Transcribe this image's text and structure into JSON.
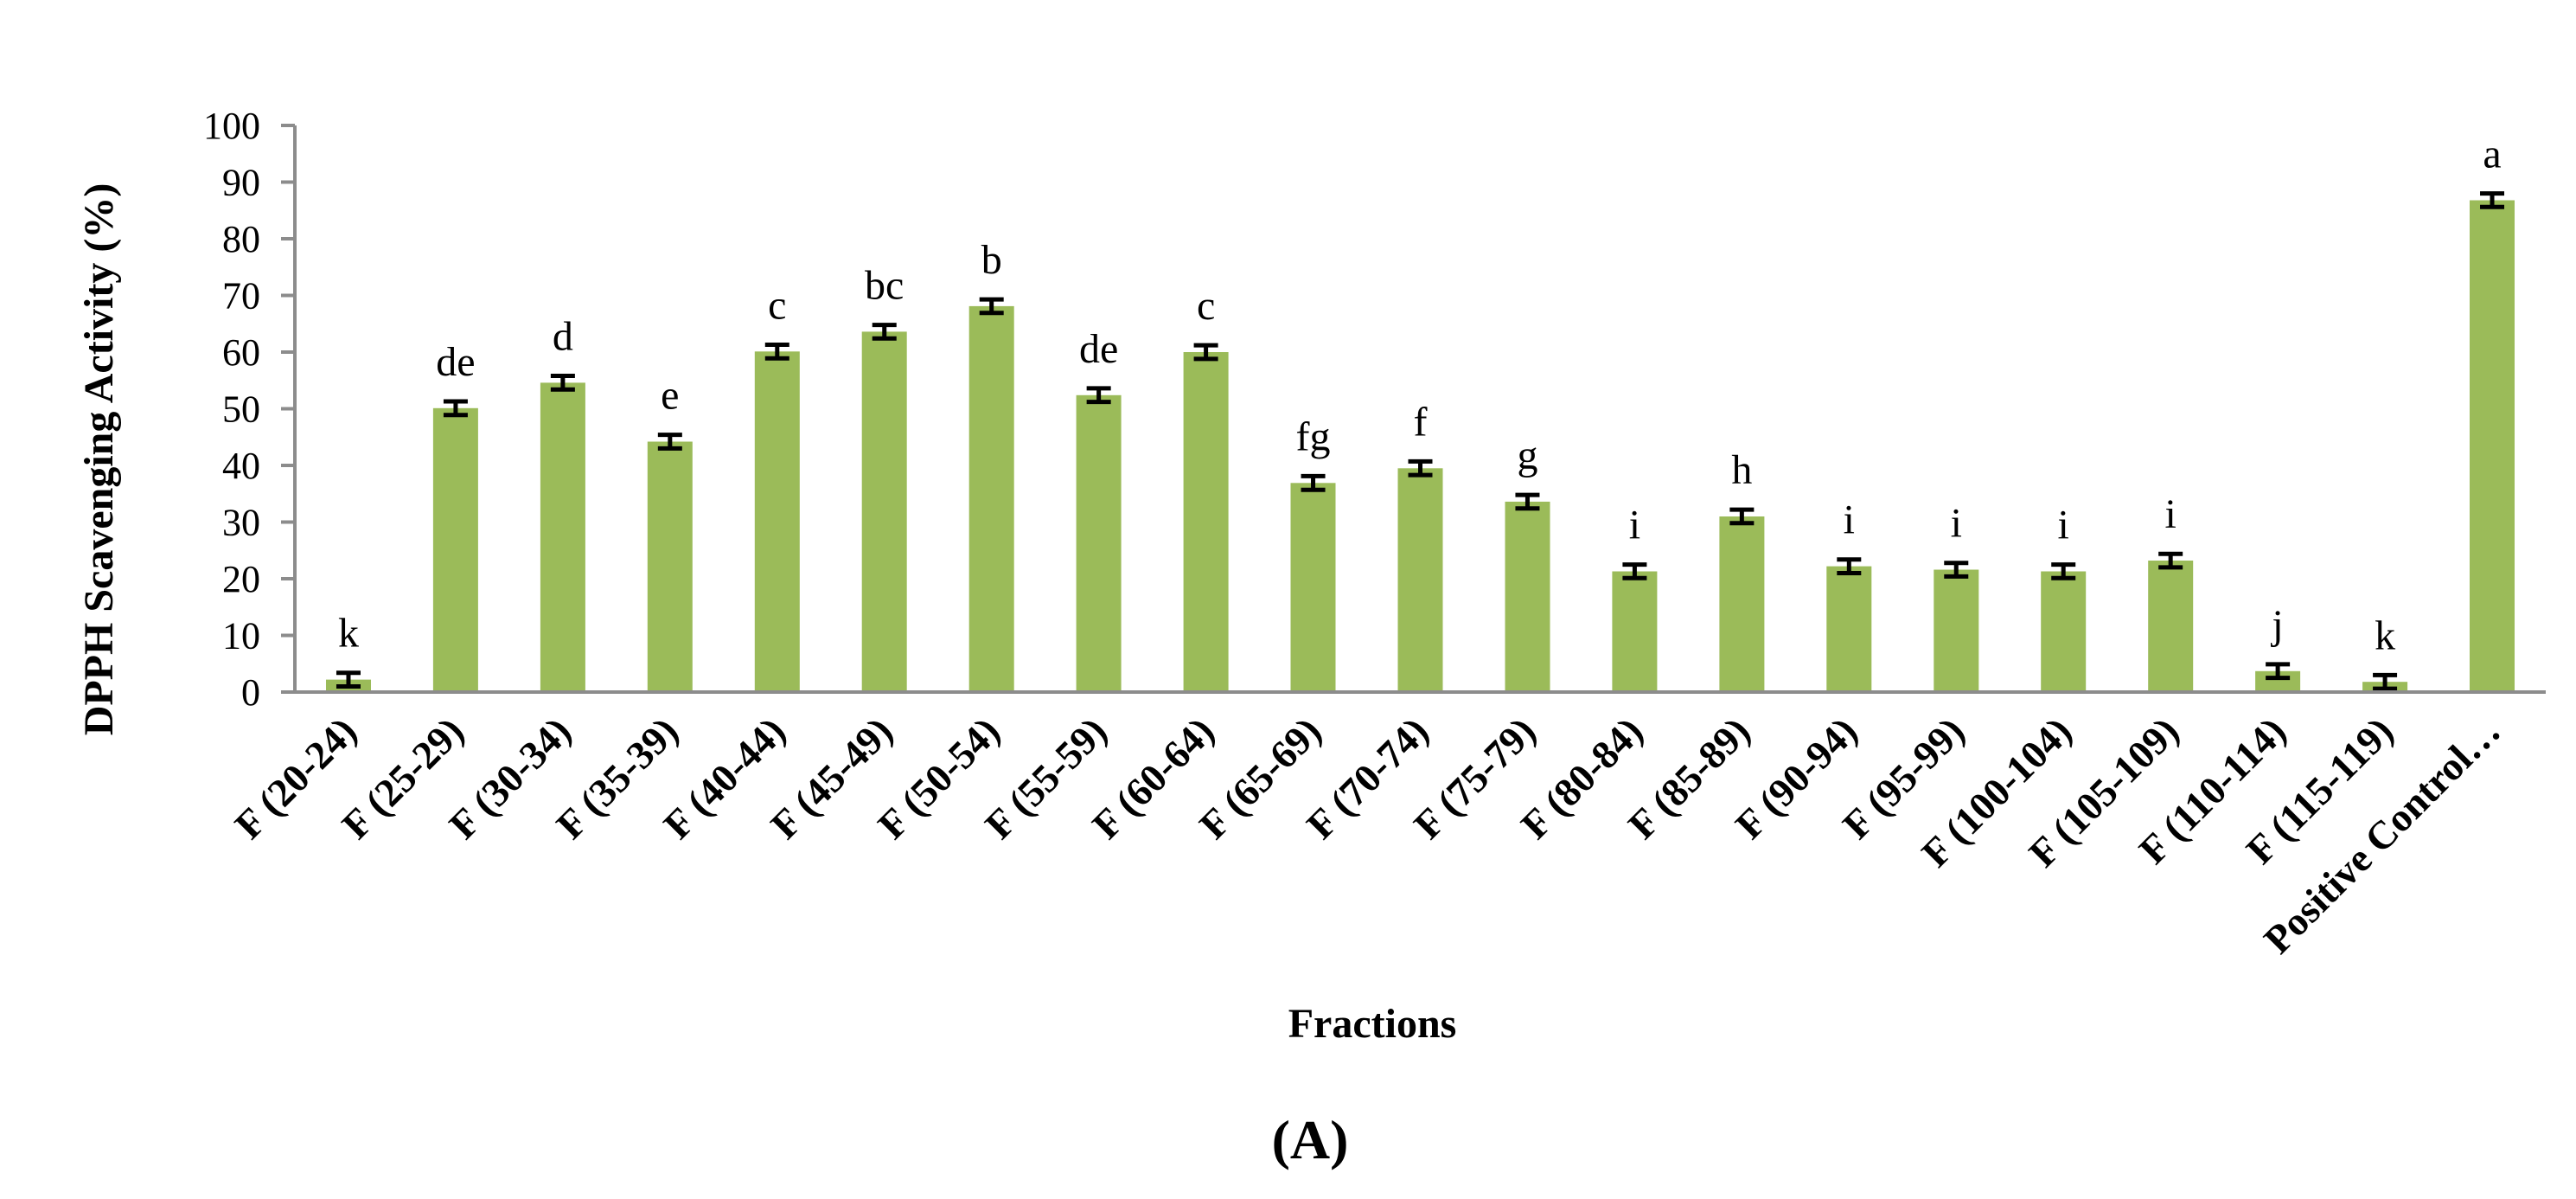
{
  "chart_data": {
    "type": "bar",
    "title": "",
    "xlabel": "Fractions",
    "ylabel": "DPPH Scavenging Activity (%)",
    "panel_label": "(A)",
    "ylim": [
      0,
      100
    ],
    "yticks": [
      "0",
      "10",
      "20",
      "30",
      "40",
      "50",
      "60",
      "70",
      "80",
      "90",
      "100"
    ],
    "grid": false,
    "legend": "none",
    "bar_color": "#9bbb59",
    "axis_color": "#8c8c8c",
    "categories": [
      "F (20-24)",
      "F (25-29)",
      "F (30-34)",
      "F (35-39)",
      "F (40-44)",
      "F (45-49)",
      "F (50-54)",
      "F (55-59)",
      "F (60-64)",
      "F (65-69)",
      "F (70-74)",
      "F (75-79)",
      "F (80-84)",
      "F (85-89)",
      "F (90-94)",
      "F (95-99)",
      "F (100-104)",
      "F (105-109)",
      "F (110-114)",
      "F (115-119)",
      "Positive Control…"
    ],
    "values": [
      2.2,
      50.1,
      54.6,
      44.2,
      60.1,
      63.6,
      68.1,
      52.4,
      60.0,
      36.9,
      39.5,
      33.6,
      21.3,
      31.0,
      22.2,
      21.6,
      21.3,
      23.2,
      3.7,
      1.8,
      86.8
    ],
    "errors": [
      1.2,
      1.2,
      1.2,
      1.2,
      1.2,
      1.2,
      1.2,
      1.2,
      1.2,
      1.2,
      1.2,
      1.2,
      1.2,
      1.2,
      1.2,
      1.2,
      1.2,
      1.2,
      1.2,
      1.2,
      1.2
    ],
    "significance_labels": [
      "k",
      "de",
      "d",
      "e",
      "c",
      "bc",
      "b",
      "de",
      "c",
      "fg",
      "f",
      "g",
      "i",
      "h",
      "i",
      "i",
      "i",
      "i",
      "j",
      "k",
      "a"
    ]
  }
}
